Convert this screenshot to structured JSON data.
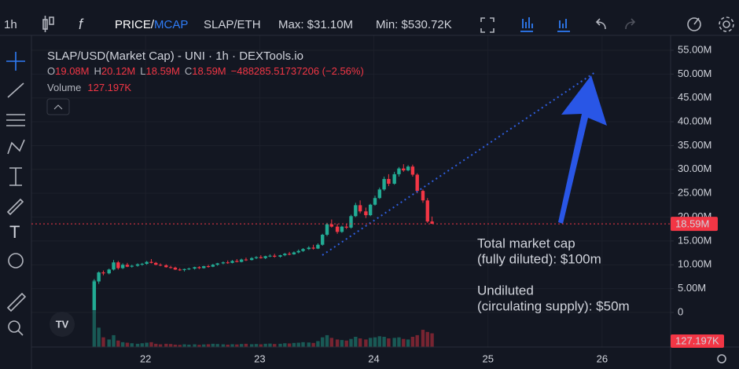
{
  "toolbar": {
    "interval": "1h",
    "price": "PRICE/",
    "mcap": "MCAP",
    "pair": "SLAP/ETH",
    "max": "Max: $31.10M",
    "min": "Min: $530.72K"
  },
  "chart_data": {
    "type": "candlestick",
    "title": "SLAP/USD(Market Cap) - UNI · 1h · DEXTools.io",
    "ohlc_legend": [
      {
        "label": "O",
        "value": "19.08M"
      },
      {
        "label": "H",
        "value": "20.12M"
      },
      {
        "label": "L",
        "value": "18.59M"
      },
      {
        "label": "C",
        "value": "18.59M"
      }
    ],
    "change": "−488285.51737206 (−2.56%)",
    "volume_title": "Volume",
    "volume_label": "127.197K",
    "annotations": [
      "Total market cap",
      "(fully diluted): $100m",
      "Undiluted",
      "(circulating supply): $50m"
    ],
    "up_color": "#22ab94",
    "down_color": "#f23645",
    "grid": true,
    "xlim": [
      21.0,
      26.6
    ],
    "xticks": [
      22,
      23,
      24,
      25,
      26
    ],
    "ylim": [
      -7.25,
      58.13
    ],
    "yticks": [
      {
        "value": 55,
        "label": "55.00M"
      },
      {
        "value": 50,
        "label": "50.00M"
      },
      {
        "value": 45,
        "label": "45.00M"
      },
      {
        "value": 40,
        "label": "40.00M"
      },
      {
        "value": 35,
        "label": "35.00M"
      },
      {
        "value": 30,
        "label": "30.00M"
      },
      {
        "value": 25,
        "label": "25.00M"
      },
      {
        "value": 20,
        "label": "20.00M"
      },
      {
        "value": 15,
        "label": "15.00M"
      },
      {
        "value": 10,
        "label": "10.00M"
      },
      {
        "value": 5,
        "label": "5.00M"
      },
      0
    ],
    "last_price": {
      "value": 18.59,
      "label": "18.59M"
    },
    "x": [
      21.55,
      21.59,
      21.63,
      21.68,
      21.72,
      21.76,
      21.8,
      21.84,
      21.88,
      21.93,
      21.97,
      22.01,
      22.05,
      22.09,
      22.13,
      22.18,
      22.22,
      22.26,
      22.3,
      22.34,
      22.38,
      22.43,
      22.47,
      22.51,
      22.55,
      22.59,
      22.63,
      22.68,
      22.72,
      22.76,
      22.8,
      22.84,
      22.88,
      22.93,
      22.97,
      23.01,
      23.05,
      23.09,
      23.13,
      23.18,
      23.22,
      23.26,
      23.3,
      23.34,
      23.38,
      23.43,
      23.47,
      23.51,
      23.55,
      23.59,
      23.63,
      23.68,
      23.72,
      23.76,
      23.8,
      23.84,
      23.88,
      23.93,
      23.97,
      24.01,
      24.05,
      24.09,
      24.13,
      24.18,
      24.22,
      24.26,
      24.3,
      24.34,
      24.38,
      24.43,
      24.47,
      24.51
    ],
    "open": [
      0.5,
      6.5,
      8.4,
      8.2,
      9.0,
      10.5,
      9.3,
      10.0,
      9.6,
      9.8,
      10.1,
      10.2,
      10.6,
      10.4,
      10.0,
      9.9,
      9.5,
      9.4,
      9.0,
      8.9,
      9.1,
      9.2,
      9.5,
      9.3,
      9.7,
      9.6,
      10.0,
      10.3,
      10.5,
      10.4,
      10.8,
      10.6,
      11.1,
      11.0,
      11.4,
      11.6,
      11.4,
      11.8,
      11.9,
      11.7,
      12.0,
      12.3,
      12.2,
      12.6,
      12.9,
      13.3,
      13.6,
      13.4,
      14.2,
      16.3,
      18.5,
      18.0,
      16.9,
      18.0,
      17.8,
      20.2,
      22.5,
      21.2,
      20.4,
      22.6,
      24.0,
      25.8,
      28.0,
      27.0,
      29.0,
      30.2,
      29.8,
      30.6,
      28.9,
      25.5,
      23.5,
      19.08
    ],
    "high": [
      7.0,
      8.6,
      8.8,
      9.2,
      11.0,
      10.8,
      10.3,
      10.4,
      10.0,
      10.3,
      10.4,
      10.8,
      11.2,
      10.6,
      10.3,
      10.1,
      9.8,
      9.6,
      9.3,
      9.2,
      9.4,
      9.6,
      9.7,
      9.8,
      10.0,
      10.2,
      10.4,
      10.7,
      10.9,
      11.0,
      11.2,
      11.3,
      11.5,
      11.6,
      11.8,
      12.0,
      11.9,
      12.2,
      12.3,
      12.1,
      12.5,
      12.7,
      12.8,
      13.2,
      13.5,
      13.9,
      14.2,
      14.5,
      16.5,
      18.8,
      19.5,
      18.6,
      18.2,
      18.6,
      20.5,
      23.0,
      23.5,
      22.0,
      22.8,
      24.5,
      26.2,
      28.5,
      29.0,
      29.5,
      30.5,
      31.1,
      30.9,
      31.0,
      29.2,
      25.8,
      24.0,
      20.12
    ],
    "low": [
      0.53,
      6.0,
      7.8,
      8.0,
      8.8,
      9.0,
      9.1,
      9.5,
      9.4,
      9.6,
      9.8,
      10.0,
      10.3,
      9.9,
      9.7,
      9.4,
      9.2,
      8.9,
      8.7,
      8.6,
      8.9,
      9.0,
      9.1,
      9.2,
      9.4,
      9.5,
      9.8,
      10.1,
      10.2,
      10.3,
      10.5,
      10.5,
      10.8,
      10.9,
      11.2,
      11.3,
      11.2,
      11.6,
      11.5,
      11.5,
      11.8,
      12.0,
      12.1,
      12.4,
      12.7,
      13.1,
      13.2,
      13.3,
      14.0,
      16.0,
      17.8,
      16.5,
      16.7,
      17.5,
      17.6,
      20.0,
      20.8,
      19.8,
      20.2,
      22.4,
      23.8,
      25.5,
      26.5,
      26.8,
      28.5,
      29.5,
      29.6,
      28.5,
      25.0,
      23.0,
      18.8,
      18.59
    ],
    "close": [
      6.5,
      8.4,
      8.2,
      9.0,
      10.5,
      9.3,
      10.0,
      9.6,
      9.8,
      10.1,
      10.2,
      10.6,
      10.4,
      10.0,
      9.9,
      9.5,
      9.4,
      9.0,
      8.9,
      9.1,
      9.2,
      9.5,
      9.3,
      9.7,
      9.6,
      10.0,
      10.3,
      10.5,
      10.4,
      10.8,
      10.6,
      11.1,
      11.0,
      11.4,
      11.6,
      11.4,
      11.8,
      11.9,
      11.7,
      12.0,
      12.3,
      12.2,
      12.6,
      12.9,
      13.3,
      13.6,
      13.4,
      14.2,
      16.3,
      18.5,
      18.0,
      16.9,
      18.0,
      17.8,
      20.2,
      22.5,
      21.2,
      20.4,
      22.6,
      24.0,
      25.8,
      28.0,
      27.0,
      29.0,
      30.2,
      29.8,
      30.6,
      28.9,
      25.5,
      23.5,
      19.08,
      18.59
    ],
    "volume": [
      620,
      180,
      90,
      70,
      110,
      60,
      45,
      40,
      35,
      30,
      35,
      40,
      45,
      30,
      25,
      30,
      28,
      22,
      20,
      25,
      22,
      25,
      20,
      24,
      26,
      30,
      28,
      25,
      22,
      26,
      24,
      28,
      30,
      26,
      28,
      25,
      30,
      32,
      28,
      30,
      35,
      33,
      38,
      40,
      45,
      42,
      38,
      55,
      90,
      110,
      85,
      70,
      65,
      60,
      75,
      95,
      80,
      70,
      85,
      90,
      100,
      95,
      80,
      85,
      90,
      75,
      70,
      95,
      110,
      160,
      140,
      127.197
    ]
  }
}
